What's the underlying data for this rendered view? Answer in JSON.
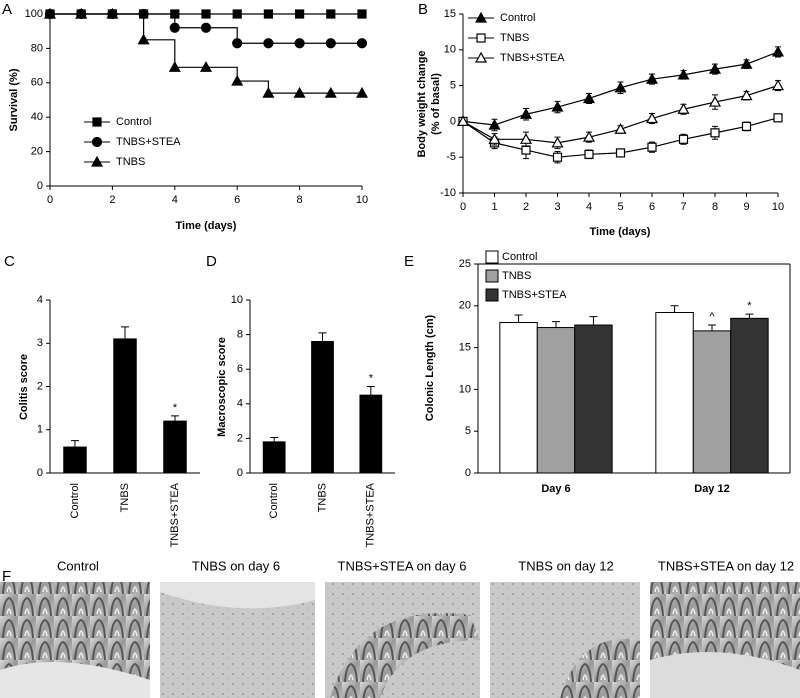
{
  "chart_data": [
    {
      "panel": "A",
      "type": "line",
      "step": true,
      "xlabel": "Time (days)",
      "ylabel": "Survival (%)",
      "xlim": [
        0,
        10
      ],
      "xticks": [
        0,
        2,
        4,
        6,
        8,
        10
      ],
      "ylim": [
        0,
        100
      ],
      "yticks": [
        0,
        20,
        40,
        60,
        80,
        100
      ],
      "legend": "center-left",
      "x": [
        0,
        1,
        2,
        3,
        4,
        5,
        6,
        7,
        8,
        9,
        10
      ],
      "series": [
        {
          "name": "Control",
          "color": "#000000",
          "marker": "square",
          "filled": true,
          "values": [
            100,
            100,
            100,
            100,
            100,
            100,
            100,
            100,
            100,
            100,
            100
          ]
        },
        {
          "name": "TNBS+STEA",
          "color": "#000000",
          "marker": "circle",
          "filled": true,
          "values": [
            100,
            100,
            100,
            100,
            92,
            92,
            83,
            83,
            83,
            83,
            83
          ]
        },
        {
          "name": "TNBS",
          "color": "#000000",
          "marker": "triangle",
          "filled": true,
          "values": [
            100,
            100,
            100,
            85,
            69,
            69,
            61,
            54,
            54,
            54,
            54
          ]
        }
      ]
    },
    {
      "panel": "B",
      "type": "line",
      "step": false,
      "xlabel": "Time (days)",
      "ylabel": [
        "Body weight change",
        "(% of basal)"
      ],
      "xlim": [
        0,
        10
      ],
      "xticks": [
        0,
        1,
        2,
        3,
        4,
        5,
        6,
        7,
        8,
        9,
        10
      ],
      "ylim": [
        -10,
        15
      ],
      "yticks": [
        -10,
        -5,
        0,
        5,
        10,
        15
      ],
      "legend": "upper-left",
      "x": [
        0,
        1,
        2,
        3,
        4,
        5,
        6,
        7,
        8,
        9,
        10
      ],
      "series": [
        {
          "name": "Control",
          "color": "#000000",
          "marker": "triangle",
          "filled": true,
          "values": [
            0,
            -0.5,
            1,
            2,
            3.2,
            4.7,
            5.9,
            6.5,
            7.3,
            8,
            9.7
          ],
          "errors": [
            0,
            0.8,
            0.8,
            0.8,
            0.7,
            0.8,
            0.7,
            0.6,
            0.7,
            0.6,
            0.7
          ]
        },
        {
          "name": "TNBS",
          "color": "#000000",
          "marker": "square",
          "filled": false,
          "values": [
            0,
            -3,
            -4,
            -5,
            -4.6,
            -4.4,
            -3.6,
            -2.5,
            -1.6,
            -0.7,
            0.5
          ],
          "errors": [
            0,
            0.8,
            1.2,
            0.8,
            0.6,
            0.5,
            0.7,
            0.7,
            0.9,
            0.6,
            0.5
          ]
        },
        {
          "name": "TNBS+STEA",
          "color": "#000000",
          "marker": "triangle",
          "filled": false,
          "values": [
            0,
            -2.5,
            -2.5,
            -3,
            -2.2,
            -1.1,
            0.4,
            1.7,
            2.7,
            3.6,
            5
          ],
          "errors": [
            0,
            0.8,
            1,
            0.8,
            0.7,
            0.5,
            0.7,
            0.7,
            1,
            0.6,
            0.7
          ]
        }
      ]
    },
    {
      "panel": "C",
      "type": "bar",
      "ylabel": "Colitis score",
      "color": "#000000",
      "categories": [
        "Control",
        "TNBS",
        "TNBS+STEA"
      ],
      "values": [
        0.6,
        3.1,
        1.2
      ],
      "errors": [
        0.15,
        0.28,
        0.12
      ],
      "ylim": [
        0,
        4
      ],
      "yticks": [
        0,
        1,
        2,
        3,
        4
      ],
      "annotations": [
        {
          "index": 2,
          "text": "*"
        }
      ]
    },
    {
      "panel": "D",
      "type": "bar",
      "ylabel": "Macroscopic score",
      "color": "#000000",
      "categories": [
        "Control",
        "TNBS",
        "TNBS+STEA"
      ],
      "values": [
        1.8,
        7.6,
        4.5
      ],
      "errors": [
        0.25,
        0.5,
        0.5
      ],
      "ylim": [
        0,
        10
      ],
      "yticks": [
        0,
        2,
        4,
        6,
        8,
        10
      ],
      "annotations": [
        {
          "index": 2,
          "text": "*"
        }
      ]
    },
    {
      "panel": "E",
      "type": "bar",
      "ylabel": "Colonic Length (cm)",
      "legend": "upper-left",
      "categories": [
        "Day 6",
        "Day 12"
      ],
      "series": [
        {
          "name": "Control",
          "color": "#ffffff",
          "values": [
            18,
            19.2
          ],
          "errors": [
            0.9,
            0.8
          ]
        },
        {
          "name": "TNBS",
          "color": "#a0a0a0",
          "values": [
            17.4,
            17
          ],
          "errors": [
            0.7,
            0.7
          ]
        },
        {
          "name": "TNBS+STEA",
          "color": "#333333",
          "values": [
            17.7,
            18.5
          ],
          "errors": [
            1,
            0.5
          ]
        }
      ],
      "ylim": [
        0,
        25
      ],
      "yticks": [
        0,
        5,
        10,
        15,
        20,
        25
      ],
      "annotations": [
        {
          "series": 1,
          "index": 1,
          "text": "^"
        },
        {
          "series": 2,
          "index": 1,
          "text": "*"
        }
      ]
    }
  ],
  "panel_f": {
    "panel": "F",
    "images": [
      "Control",
      "TNBS on day 6",
      "TNBS+STEA on day 6",
      "TNBS on day 12",
      "TNBS+STEA on day 12"
    ]
  }
}
